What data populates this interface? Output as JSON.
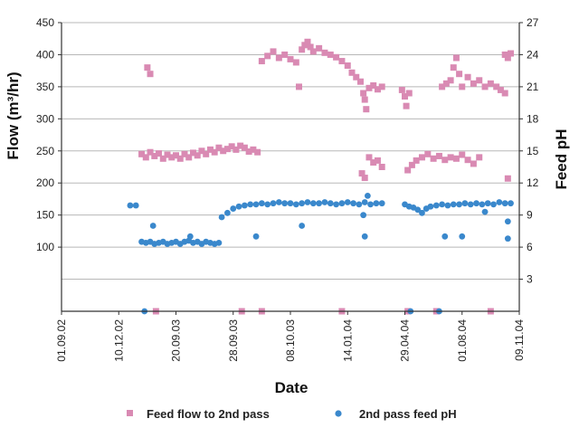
{
  "chart_data": {
    "type": "scatter",
    "title": "",
    "xlabel": "Date",
    "ylabel": "Flow (m³/hr)",
    "y2label": "Feed pH",
    "x_tick_labels": [
      "01.09.02",
      "10.12.02",
      "20.09.03",
      "28.09.03",
      "08.10.03",
      "14.01.04",
      "29.04.04",
      "01.08.04",
      "09.11.04"
    ],
    "xlim": [
      0,
      16
    ],
    "ylim": [
      0,
      450
    ],
    "y_ticks": [
      100,
      150,
      200,
      250,
      300,
      350,
      400,
      450
    ],
    "y2lim": [
      0,
      27
    ],
    "y2_ticks": [
      3,
      6,
      9,
      12,
      15,
      18,
      21,
      24,
      27
    ],
    "grid": true,
    "legend": "bottom",
    "series": [
      {
        "name": "Feed flow to 2nd pass",
        "axis": "left",
        "color": "#d98ab3",
        "marker": "square",
        "points": [
          [
            2.8,
            245
          ],
          [
            2.95,
            240
          ],
          [
            3.1,
            248
          ],
          [
            3.25,
            242
          ],
          [
            3.4,
            246
          ],
          [
            3.55,
            238
          ],
          [
            3.7,
            244
          ],
          [
            3.85,
            240
          ],
          [
            4.0,
            243
          ],
          [
            4.15,
            238
          ],
          [
            4.3,
            245
          ],
          [
            4.45,
            240
          ],
          [
            4.6,
            247
          ],
          [
            4.75,
            243
          ],
          [
            4.9,
            250
          ],
          [
            5.05,
            245
          ],
          [
            5.2,
            252
          ],
          [
            5.35,
            248
          ],
          [
            5.5,
            255
          ],
          [
            5.65,
            250
          ],
          [
            5.8,
            253
          ],
          [
            5.95,
            257
          ],
          [
            6.1,
            252
          ],
          [
            6.25,
            258
          ],
          [
            6.4,
            255
          ],
          [
            6.55,
            249
          ],
          [
            6.7,
            252
          ],
          [
            6.85,
            248
          ],
          [
            3.0,
            380
          ],
          [
            3.1,
            370
          ],
          [
            7.0,
            390
          ],
          [
            7.2,
            398
          ],
          [
            7.4,
            405
          ],
          [
            7.6,
            395
          ],
          [
            7.8,
            400
          ],
          [
            8.0,
            393
          ],
          [
            8.2,
            388
          ],
          [
            8.3,
            350
          ],
          [
            8.4,
            408
          ],
          [
            8.5,
            415
          ],
          [
            8.6,
            420
          ],
          [
            8.7,
            412
          ],
          [
            8.8,
            405
          ],
          [
            9.0,
            410
          ],
          [
            9.2,
            403
          ],
          [
            9.4,
            400
          ],
          [
            9.6,
            396
          ],
          [
            9.8,
            390
          ],
          [
            10.0,
            383
          ],
          [
            10.15,
            372
          ],
          [
            10.3,
            365
          ],
          [
            10.45,
            358
          ],
          [
            10.55,
            340
          ],
          [
            10.6,
            330
          ],
          [
            10.65,
            315
          ],
          [
            10.75,
            348
          ],
          [
            10.9,
            352
          ],
          [
            11.05,
            346
          ],
          [
            11.2,
            350
          ],
          [
            10.5,
            215
          ],
          [
            10.6,
            208
          ],
          [
            10.75,
            240
          ],
          [
            10.9,
            232
          ],
          [
            11.05,
            235
          ],
          [
            11.2,
            225
          ],
          [
            11.9,
            345
          ],
          [
            12.0,
            335
          ],
          [
            12.05,
            320
          ],
          [
            12.15,
            340
          ],
          [
            12.1,
            220
          ],
          [
            12.25,
            228
          ],
          [
            12.4,
            235
          ],
          [
            12.6,
            240
          ],
          [
            12.8,
            245
          ],
          [
            13.0,
            238
          ],
          [
            13.2,
            242
          ],
          [
            13.4,
            236
          ],
          [
            13.6,
            240
          ],
          [
            13.8,
            238
          ],
          [
            14.0,
            244
          ],
          [
            14.2,
            236
          ],
          [
            14.4,
            230
          ],
          [
            14.6,
            240
          ],
          [
            13.3,
            350
          ],
          [
            13.45,
            355
          ],
          [
            13.6,
            360
          ],
          [
            13.7,
            380
          ],
          [
            13.8,
            395
          ],
          [
            13.9,
            370
          ],
          [
            14.0,
            350
          ],
          [
            14.2,
            365
          ],
          [
            14.4,
            355
          ],
          [
            14.6,
            360
          ],
          [
            14.8,
            350
          ],
          [
            15.0,
            355
          ],
          [
            15.2,
            350
          ],
          [
            15.35,
            345
          ],
          [
            15.5,
            340
          ],
          [
            15.5,
            400
          ],
          [
            15.6,
            395
          ],
          [
            15.7,
            402
          ],
          [
            15.6,
            207
          ],
          [
            3.3,
            0
          ],
          [
            6.3,
            0
          ],
          [
            7.0,
            0
          ],
          [
            9.8,
            0
          ],
          [
            12.1,
            0
          ],
          [
            13.1,
            0
          ],
          [
            15.0,
            0
          ]
        ]
      },
      {
        "name": "2nd pass feed pH",
        "axis": "right",
        "color": "#3a88cc",
        "marker": "circle",
        "points": [
          [
            2.4,
            9.9
          ],
          [
            2.6,
            9.9
          ],
          [
            2.8,
            6.5
          ],
          [
            2.95,
            6.4
          ],
          [
            3.1,
            6.5
          ],
          [
            3.25,
            6.3
          ],
          [
            3.4,
            6.4
          ],
          [
            3.55,
            6.5
          ],
          [
            3.7,
            6.3
          ],
          [
            3.85,
            6.4
          ],
          [
            4.0,
            6.5
          ],
          [
            4.15,
            6.3
          ],
          [
            4.3,
            6.5
          ],
          [
            4.45,
            6.6
          ],
          [
            4.6,
            6.4
          ],
          [
            4.75,
            6.5
          ],
          [
            4.9,
            6.3
          ],
          [
            5.05,
            6.5
          ],
          [
            5.2,
            6.4
          ],
          [
            5.35,
            6.3
          ],
          [
            5.5,
            6.4
          ],
          [
            3.2,
            8.0
          ],
          [
            4.5,
            7.0
          ],
          [
            5.6,
            8.8
          ],
          [
            5.8,
            9.2
          ],
          [
            6.0,
            9.6
          ],
          [
            6.2,
            9.8
          ],
          [
            6.4,
            9.9
          ],
          [
            6.6,
            10.0
          ],
          [
            6.8,
            10.0
          ],
          [
            7.0,
            10.1
          ],
          [
            7.2,
            10.0
          ],
          [
            7.4,
            10.1
          ],
          [
            7.6,
            10.2
          ],
          [
            7.8,
            10.1
          ],
          [
            8.0,
            10.1
          ],
          [
            8.2,
            10.0
          ],
          [
            8.4,
            10.1
          ],
          [
            8.6,
            10.2
          ],
          [
            8.8,
            10.1
          ],
          [
            9.0,
            10.1
          ],
          [
            9.2,
            10.2
          ],
          [
            9.4,
            10.1
          ],
          [
            9.6,
            10.0
          ],
          [
            9.8,
            10.1
          ],
          [
            10.0,
            10.2
          ],
          [
            10.2,
            10.1
          ],
          [
            10.4,
            10.0
          ],
          [
            10.6,
            10.2
          ],
          [
            10.7,
            10.8
          ],
          [
            10.8,
            10.0
          ],
          [
            11.0,
            10.1
          ],
          [
            11.2,
            10.1
          ],
          [
            6.8,
            7.0
          ],
          [
            8.4,
            8.0
          ],
          [
            10.55,
            9.0
          ],
          [
            10.6,
            7.0
          ],
          [
            12.0,
            10.0
          ],
          [
            12.15,
            9.8
          ],
          [
            12.3,
            9.7
          ],
          [
            12.45,
            9.5
          ],
          [
            12.6,
            9.2
          ],
          [
            12.75,
            9.6
          ],
          [
            12.9,
            9.8
          ],
          [
            13.1,
            9.9
          ],
          [
            13.3,
            10.0
          ],
          [
            13.5,
            9.9
          ],
          [
            13.7,
            10.0
          ],
          [
            13.9,
            10.0
          ],
          [
            14.1,
            10.1
          ],
          [
            14.3,
            10.0
          ],
          [
            14.5,
            10.1
          ],
          [
            14.7,
            10.0
          ],
          [
            14.9,
            10.1
          ],
          [
            15.1,
            10.0
          ],
          [
            15.3,
            10.2
          ],
          [
            15.5,
            10.1
          ],
          [
            15.7,
            10.1
          ],
          [
            13.4,
            7.0
          ],
          [
            14.0,
            7.0
          ],
          [
            14.8,
            9.3
          ],
          [
            15.6,
            8.4
          ],
          [
            15.6,
            6.8
          ],
          [
            2.9,
            0
          ],
          [
            12.2,
            0
          ],
          [
            13.2,
            0
          ]
        ]
      }
    ]
  }
}
